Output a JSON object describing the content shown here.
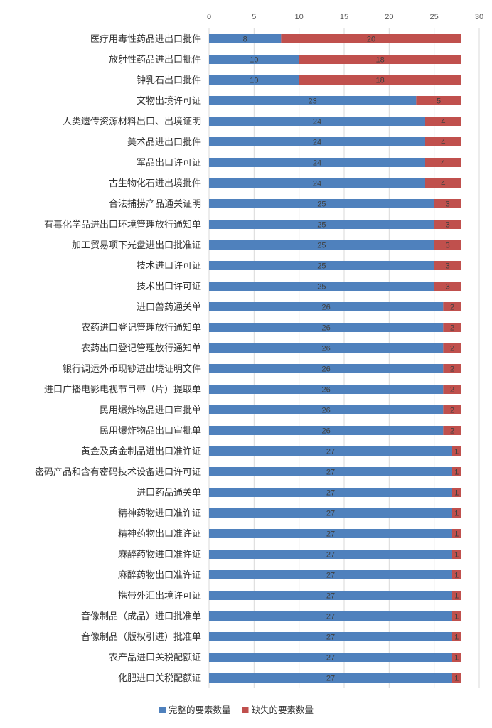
{
  "chart_data": {
    "type": "bar",
    "orientation": "horizontal",
    "stacked": true,
    "title": "",
    "xlabel": "",
    "ylabel": "",
    "xlim": [
      0,
      30
    ],
    "xticks": [
      0,
      5,
      10,
      15,
      20,
      25,
      30
    ],
    "grid": true,
    "legend_position": "bottom",
    "categories": [
      "医疗用毒性药品进出口批件",
      "放射性药品进出口批件",
      "钟乳石出口批件",
      "文物出境许可证",
      "人类遗传资源材料出口、出境证明",
      "美术品进出口批件",
      "军品出口许可证",
      "古生物化石进出境批件",
      "合法捕捞产品通关证明",
      "有毒化学品进出口环境管理放行通知单",
      "加工贸易项下光盘进出口批准证",
      "技术进口许可证",
      "技术出口许可证",
      "进口兽药通关单",
      "农药进口登记管理放行通知单",
      "农药出口登记管理放行通知单",
      "银行调运外币现钞进出境证明文件",
      "进口广播电影电视节目带（片）提取单",
      "民用爆炸物品进口审批单",
      "民用爆炸物品出口审批单",
      "黄金及黄金制品进出口准许证",
      "密码产品和含有密码技术设备进口许可证",
      "进口药品通关单",
      "精神药物进口准许证",
      "精神药物出口准许证",
      "麻醉药物进口准许证",
      "麻醉药物出口准许证",
      "携带外汇出境许可证",
      "音像制品（成品）进口批准单",
      "音像制品（版权引进）批准单",
      "农产品进口关税配额证",
      "化肥进口关税配额证"
    ],
    "series": [
      {
        "name": "完整的要素数量",
        "color": "#4f81bd",
        "values": [
          8,
          10,
          10,
          23,
          24,
          24,
          24,
          24,
          25,
          25,
          25,
          25,
          25,
          26,
          26,
          26,
          26,
          26,
          26,
          26,
          27,
          27,
          27,
          27,
          27,
          27,
          27,
          27,
          27,
          27,
          27,
          27
        ]
      },
      {
        "name": "缺失的要素数量",
        "color": "#c0504d",
        "values": [
          20,
          18,
          18,
          5,
          4,
          4,
          4,
          4,
          3,
          3,
          3,
          3,
          3,
          2,
          2,
          2,
          2,
          2,
          2,
          2,
          1,
          1,
          1,
          1,
          1,
          1,
          1,
          1,
          1,
          1,
          1,
          1
        ]
      }
    ]
  }
}
